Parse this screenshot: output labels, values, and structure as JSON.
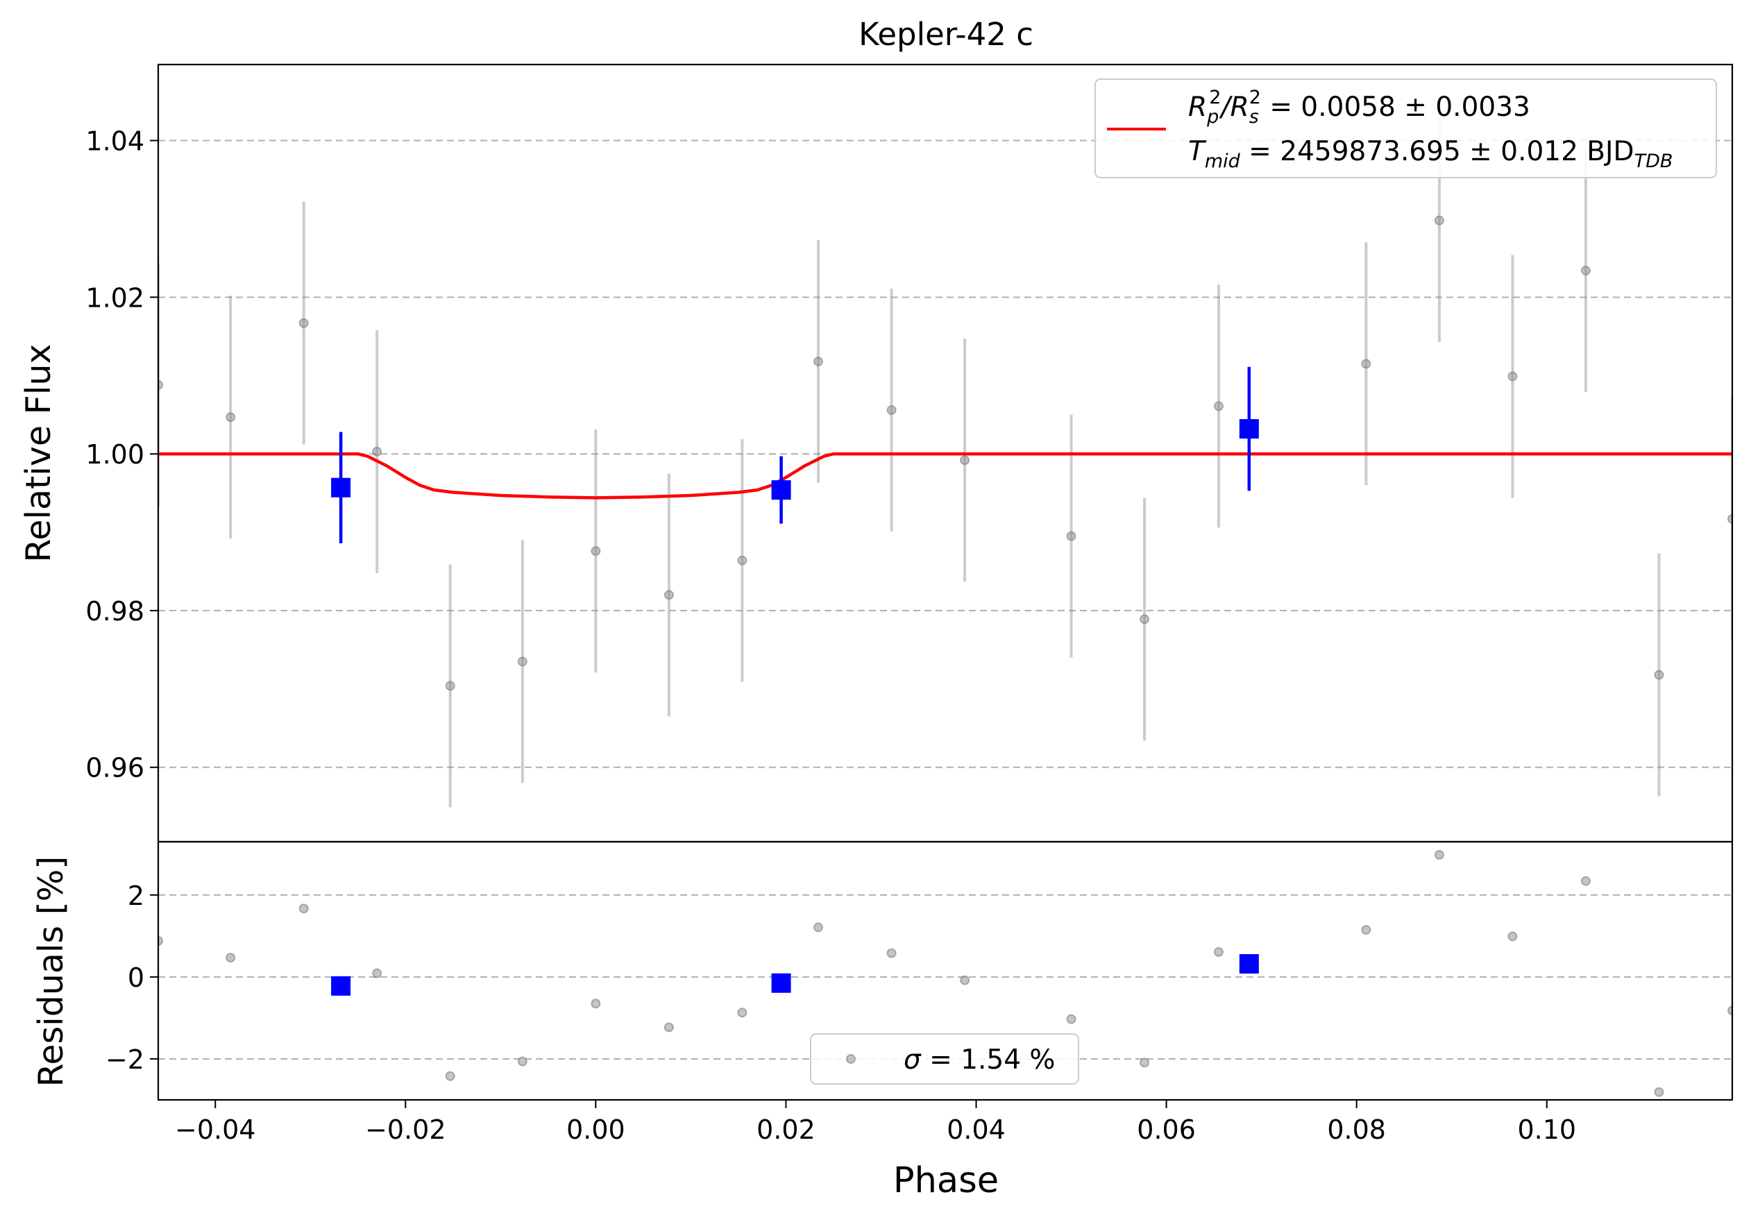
{
  "chart_data": [
    {
      "type": "scatter",
      "panel": "top",
      "title": "Kepler-42 c",
      "xlabel": "",
      "ylabel": "Relative Flux",
      "xlim": [
        -0.046,
        0.1195
      ],
      "ylim": [
        0.9505,
        1.0497
      ],
      "yticks": [
        0.96,
        0.98,
        1.0,
        1.02,
        1.04
      ],
      "ytick_labels": [
        "0.96",
        "0.98",
        "1.00",
        "1.02",
        "1.04"
      ],
      "grid": "horizontal dashed",
      "legend_placement": "top-right",
      "legend": {
        "line1": {
          "main": "R",
          "sub1": "p",
          "sup1": "2",
          "slash": "/R",
          "sub2": "s",
          "sup2": "2",
          "rest": " = 0.0058 ± 0.0033"
        },
        "line2": {
          "main": "T",
          "sub1": "mid",
          "rest": " = 2459873.695 ± 0.012 BJD",
          "sub2": "TDB"
        }
      },
      "series": [
        {
          "name": "",
          "kind": "gray points with error bars",
          "color": "#7f7f7f",
          "x": [
            -0.046,
            -0.0384,
            -0.0307,
            -0.023,
            -0.0153,
            -0.0077,
            0.0,
            0.0077,
            0.0154,
            0.0234,
            0.0311,
            0.0388,
            0.05,
            0.0577,
            0.0655,
            0.081,
            0.0887,
            0.0964,
            0.1041,
            0.1118,
            0.1195
          ],
          "y": [
            1.0088,
            1.0047,
            1.0167,
            1.0003,
            0.9704,
            0.9735,
            0.9876,
            0.982,
            0.9864,
            1.0118,
            1.0056,
            0.9992,
            0.9895,
            0.9789,
            1.0061,
            1.0115,
            1.0298,
            1.0099,
            1.0234,
            0.9718,
            0.9917
          ],
          "err": [
            0.0155,
            0.0155,
            0.0155,
            0.0155,
            0.0155,
            0.0155,
            0.0155,
            0.0155,
            0.0155,
            0.0155,
            0.0155,
            0.0155,
            0.0155,
            0.0155,
            0.0155,
            0.0155,
            0.0155,
            0.0155,
            0.0155,
            0.0155,
            0.0155
          ]
        },
        {
          "name": "",
          "kind": "binned blue squares with error bars",
          "color": "#0000ff",
          "x": [
            -0.0268,
            0.0195,
            0.0687
          ],
          "y": [
            0.9957,
            0.9954,
            1.0032
          ],
          "err": [
            0.0071,
            0.0043,
            0.0079
          ]
        },
        {
          "name": "R_p^2/R_s^2 = 0.0058 ± 0.0033",
          "kind": "transit model line",
          "color": "#ff0000",
          "x": [
            -0.046,
            -0.025,
            -0.024,
            -0.022,
            -0.02,
            -0.0185,
            -0.017,
            -0.015,
            -0.01,
            -0.005,
            0.0,
            0.005,
            0.01,
            0.015,
            0.017,
            0.0185,
            0.02,
            0.022,
            0.024,
            0.025,
            0.1195
          ],
          "y": [
            1.0,
            1.0,
            0.9997,
            0.9985,
            0.997,
            0.996,
            0.9954,
            0.9951,
            0.9947,
            0.9945,
            0.9944,
            0.9945,
            0.9947,
            0.9951,
            0.9954,
            0.996,
            0.997,
            0.9985,
            0.9997,
            1.0,
            1.0
          ]
        }
      ]
    },
    {
      "type": "scatter",
      "panel": "bottom",
      "xlabel": "Phase",
      "ylabel": "Residuals [%]",
      "xlim": [
        -0.046,
        0.1195
      ],
      "ylim": [
        -3.0,
        3.3
      ],
      "xticks": [
        -0.04,
        -0.02,
        0.0,
        0.02,
        0.04,
        0.06,
        0.08,
        0.1
      ],
      "xtick_labels": [
        "−0.04",
        "−0.02",
        "0.00",
        "0.02",
        "0.04",
        "0.06",
        "0.08",
        "0.10"
      ],
      "yticks": [
        -2,
        0,
        2
      ],
      "ytick_labels": [
        "−2",
        "0",
        "2"
      ],
      "grid": "horizontal dashed",
      "legend_placement": "bottom-center",
      "legend": {
        "sigma": "σ",
        "rest": " = 1.54 %"
      },
      "series": [
        {
          "name": "",
          "kind": "gray residual points",
          "color": "#7f7f7f",
          "x": [
            -0.046,
            -0.0384,
            -0.0307,
            -0.023,
            -0.0153,
            -0.0077,
            0.0,
            0.0077,
            0.0154,
            0.0234,
            0.0311,
            0.0388,
            0.05,
            0.0577,
            0.0655,
            0.081,
            0.0887,
            0.0964,
            0.1041,
            0.1118,
            0.1195
          ],
          "y": [
            0.88,
            0.47,
            1.67,
            0.09,
            -2.42,
            -2.06,
            -0.65,
            -1.23,
            -0.87,
            1.21,
            0.58,
            -0.08,
            -1.03,
            -2.09,
            0.61,
            1.15,
            2.98,
            0.99,
            2.34,
            -2.81,
            -0.82
          ]
        },
        {
          "name": "",
          "kind": "binned blue residuals",
          "color": "#0000ff",
          "x": [
            -0.0268,
            0.0195,
            0.0687
          ],
          "y": [
            -0.22,
            -0.15,
            0.32
          ]
        }
      ]
    }
  ]
}
